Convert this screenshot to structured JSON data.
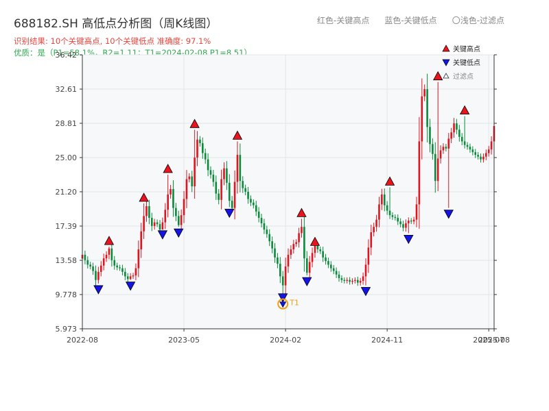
{
  "header": {
    "title": "688182.SH 高低点分析图（周K线图）",
    "legend_red": "红色-关键高点",
    "legend_blue": "蓝色-关键低点",
    "legend_light": "〇浅色-过滤点",
    "result_line": "识别结果: 10个关键高点, 10个关键低点   准确度: 97.1%",
    "quality_line": "优质：是（P1=58.1%，R2=1.11；T1=2024-02-08,P1=8.51）"
  },
  "colors": {
    "up": "#e0141e",
    "down": "#0a8a3a",
    "high_marker": "#e8141e",
    "low_marker": "#1414e6",
    "t1": "#f39c12",
    "grid": "#e3e6ea",
    "plot_bg": "#f6f8fa"
  },
  "chart_data": {
    "type": "candlestick",
    "ylim": [
      5.973,
      36.42
    ],
    "y_ticks": [
      "5.973",
      "9.778",
      "13.58",
      "17.39",
      "21.20",
      "25.00",
      "28.81",
      "32.61",
      "36.42"
    ],
    "x_ticks": [
      "2022-08",
      "2023-05",
      "2024-02",
      "2024-11",
      "2025-07",
      "2025-08"
    ],
    "x_tick_index": [
      0,
      38,
      76,
      114,
      152,
      154
    ],
    "plot_legend": {
      "high": "关键高点",
      "low": "关键低点",
      "filtered": "过滤点"
    },
    "closes": [
      14.2,
      13.6,
      13.1,
      12.9,
      12.4,
      11.4,
      12.3,
      13.0,
      13.8,
      14.2,
      14.9,
      13.6,
      13.0,
      12.8,
      12.7,
      12.3,
      11.8,
      11.5,
      11.8,
      11.9,
      12.7,
      14.8,
      16.8,
      18.5,
      19.6,
      18.3,
      17.4,
      17.8,
      17.6,
      17.0,
      17.8,
      19.2,
      20.9,
      21.5,
      19.4,
      18.5,
      17.5,
      18.6,
      20.4,
      22.6,
      22.9,
      21.8,
      25.0,
      27.0,
      26.6,
      25.5,
      24.8,
      23.6,
      23.1,
      22.3,
      21.0,
      20.3,
      22.6,
      23.8,
      22.2,
      20.2,
      19.4,
      22.3,
      25.3,
      22.4,
      21.6,
      21.2,
      20.4,
      20.0,
      19.7,
      19.0,
      18.3,
      17.7,
      17.0,
      16.5,
      15.7,
      14.9,
      13.9,
      13.2,
      11.8,
      10.8,
      12.9,
      14.2,
      14.8,
      15.4,
      15.6,
      16.6,
      17.3,
      13.8,
      12.2,
      13.4,
      14.4,
      15.2,
      14.8,
      14.6,
      13.9,
      13.5,
      13.1,
      12.7,
      12.4,
      12.0,
      11.6,
      11.4,
      11.3,
      11.4,
      11.2,
      11.3,
      11.4,
      11.1,
      11.3,
      11.8,
      13.1,
      15.0,
      16.7,
      17.3,
      18.1,
      19.8,
      20.9,
      19.7,
      19.1,
      18.6,
      18.4,
      18.3,
      17.9,
      17.6,
      17.2,
      17.7,
      18.0,
      17.9,
      18.1,
      19.8,
      26.8,
      31.8,
      32.6,
      28.4,
      26.5,
      25.4,
      22.4,
      24.9,
      25.8,
      26.2,
      26.0,
      27.1,
      27.8,
      28.8,
      28.1,
      27.3,
      26.8,
      26.4,
      26.2,
      25.9,
      25.6,
      25.3,
      25.1,
      24.8,
      25.1,
      25.5,
      25.9,
      26.8,
      28.5
    ],
    "key_highs": [
      {
        "index": 10,
        "price": 15.1
      },
      {
        "index": 23,
        "price": 19.9
      },
      {
        "index": 32,
        "price": 23.1
      },
      {
        "index": 42,
        "price": 28.1
      },
      {
        "index": 58,
        "price": 26.8
      },
      {
        "index": 82,
        "price": 18.2
      },
      {
        "index": 87,
        "price": 15.0
      },
      {
        "index": 115,
        "price": 21.7
      },
      {
        "index": 133,
        "price": 33.4
      },
      {
        "index": 143,
        "price": 29.6
      }
    ],
    "key_lows": [
      {
        "index": 6,
        "price": 11.0
      },
      {
        "index": 18,
        "price": 11.4
      },
      {
        "index": 30,
        "price": 17.1
      },
      {
        "index": 36,
        "price": 17.3
      },
      {
        "index": 55,
        "price": 19.5
      },
      {
        "index": 75,
        "price": 10.1
      },
      {
        "index": 84,
        "price": 11.9
      },
      {
        "index": 106,
        "price": 10.8
      },
      {
        "index": 122,
        "price": 16.6
      },
      {
        "index": 137,
        "price": 19.4
      }
    ],
    "t1": {
      "label": "T1",
      "index": 75,
      "price": 8.51
    }
  }
}
